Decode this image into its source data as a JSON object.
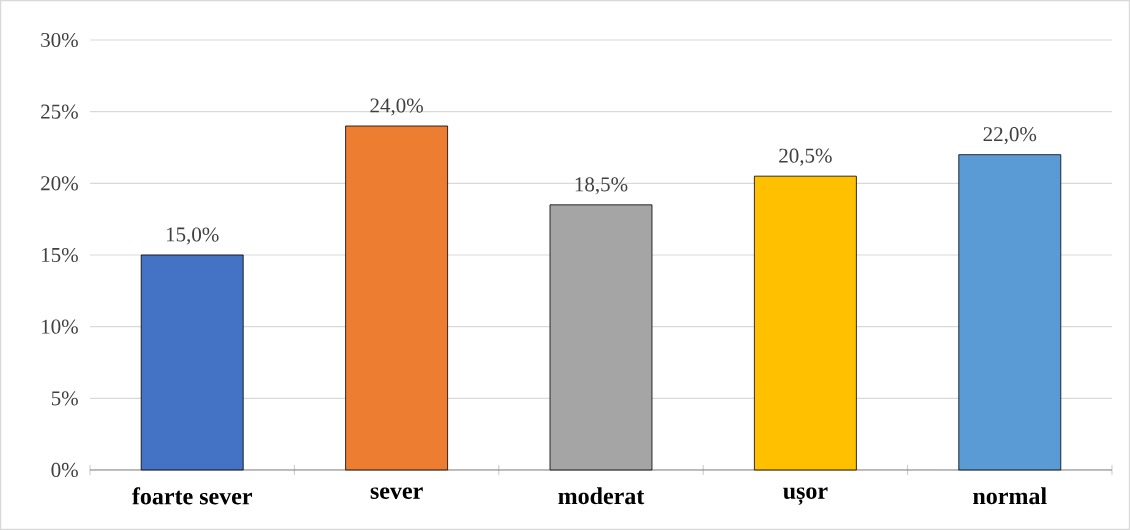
{
  "chart_data": {
    "type": "bar",
    "categories": [
      "foarte sever",
      "sever",
      "moderat",
      "ușor",
      "normal"
    ],
    "values": [
      15,
      24,
      18.5,
      20.5,
      22
    ],
    "colors": [
      "#4472c4",
      "#ed7d31",
      "#a5a5a5",
      "#ffc000",
      "#5b9bd5"
    ],
    "value_labels": [
      "15,0%",
      "24,0%",
      "18,5%",
      "20,5%",
      "22,0%"
    ],
    "ylim": [
      0,
      30
    ],
    "yticks": [
      {
        "value": 0,
        "label": "0%"
      },
      {
        "value": 5,
        "label": "5%"
      },
      {
        "value": 10,
        "label": "10%"
      },
      {
        "value": 15,
        "label": "15%"
      },
      {
        "value": 20,
        "label": "20%"
      },
      {
        "value": 25,
        "label": "25%"
      },
      {
        "value": 30,
        "label": "30%"
      }
    ],
    "grid": "y"
  }
}
